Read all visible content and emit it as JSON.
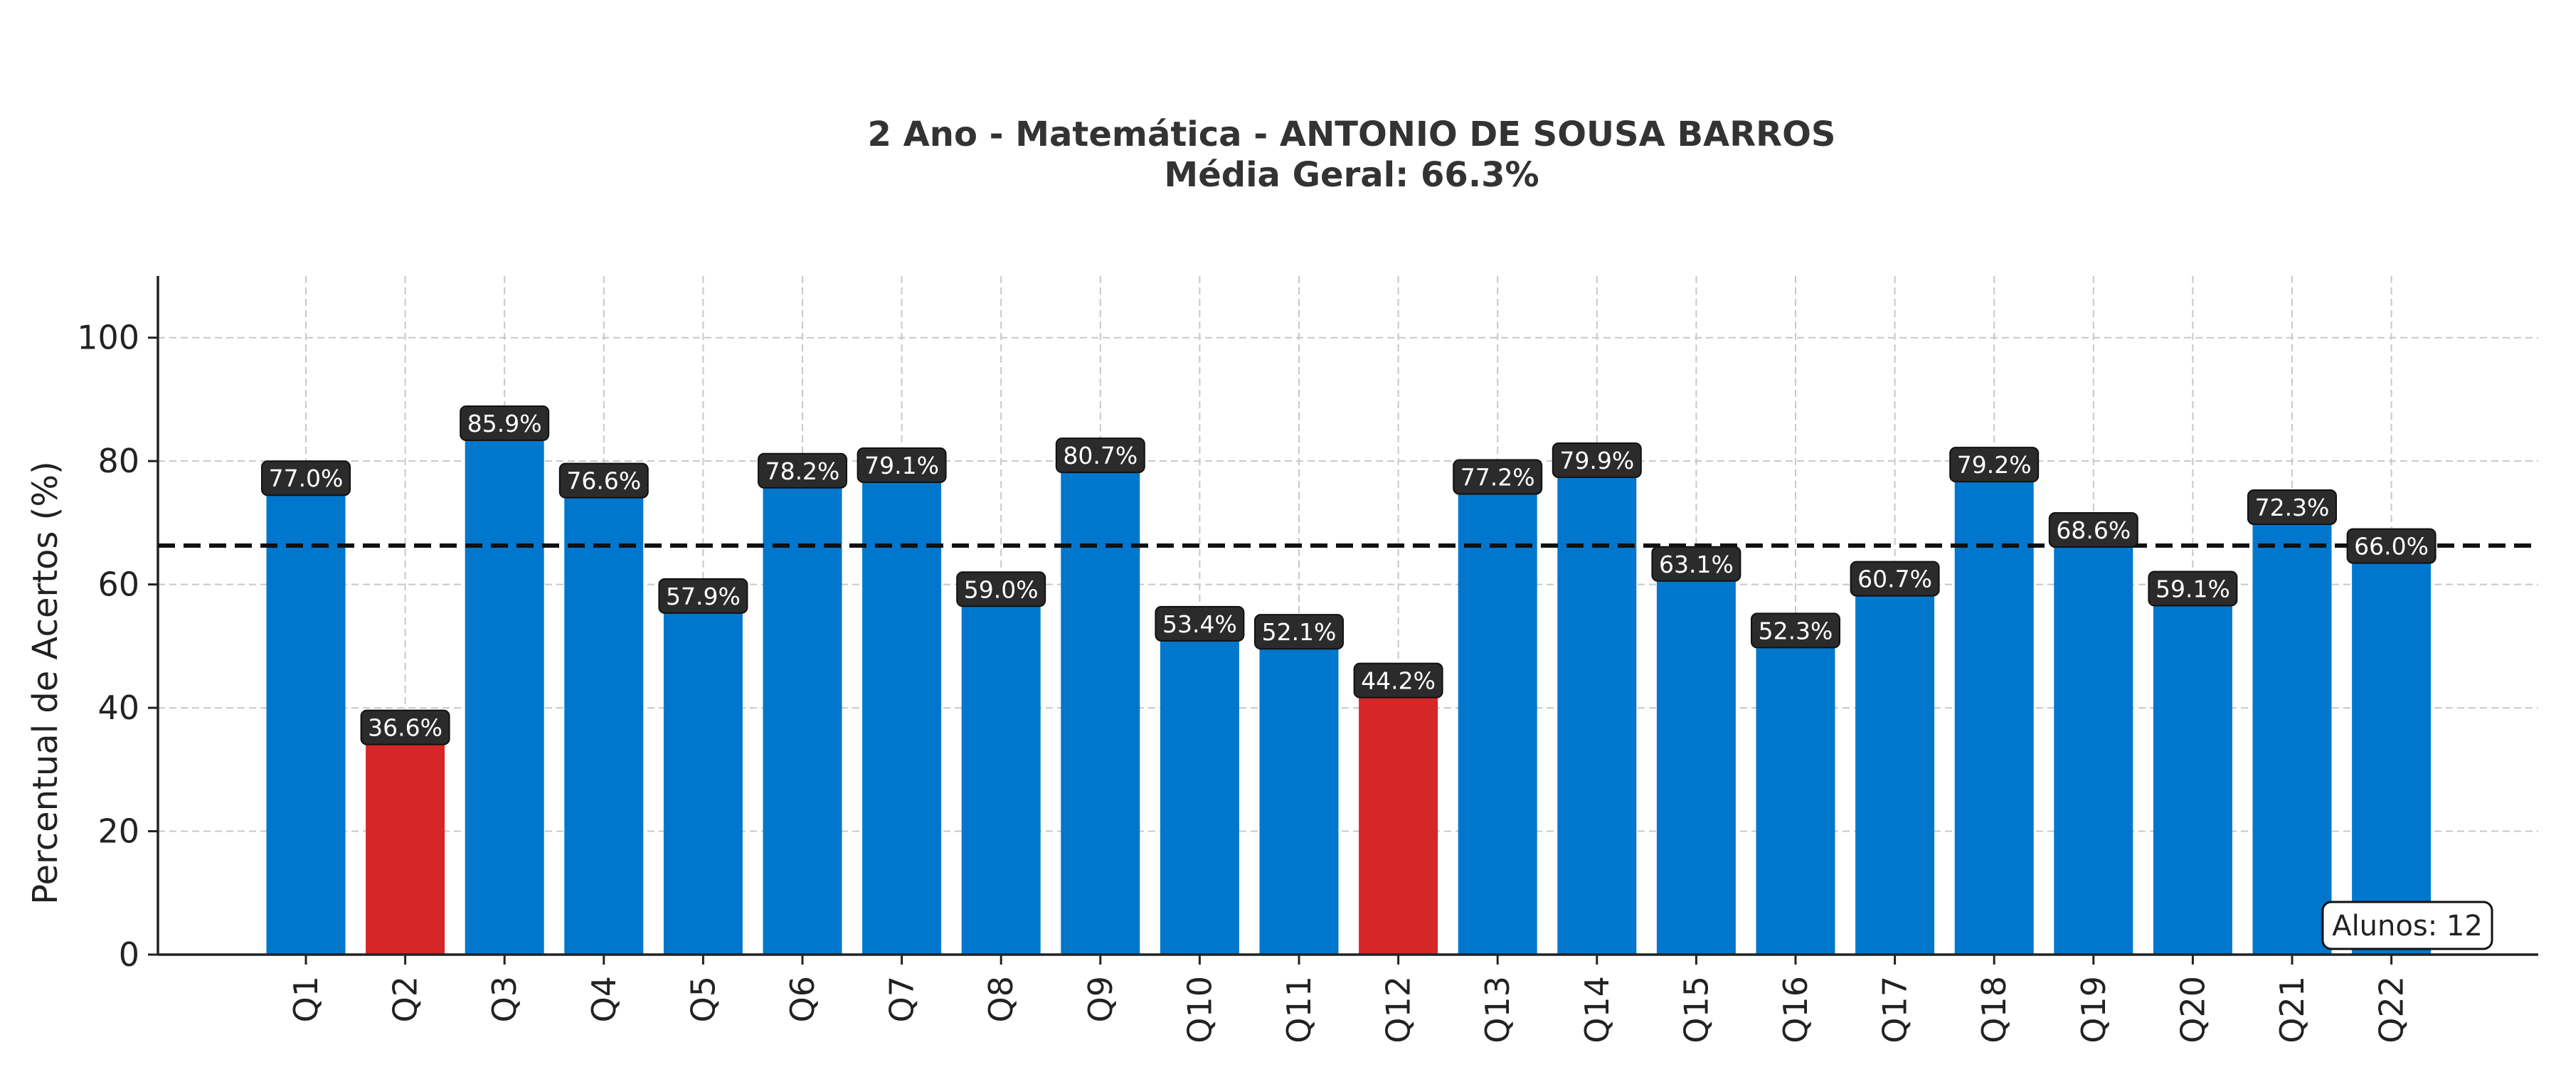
{
  "chart_data": {
    "type": "bar",
    "title": "2 Ano - Matemática - ANTONIO DE SOUSA BARROS",
    "subtitle": "Média Geral: 66.3%",
    "xlabel": "",
    "ylabel": "Percentual de Acertos (%)",
    "ylim": [
      0,
      110
    ],
    "yticks": [
      0,
      20,
      40,
      60,
      80,
      100
    ],
    "grid": true,
    "categories": [
      "Q1",
      "Q2",
      "Q3",
      "Q4",
      "Q5",
      "Q6",
      "Q7",
      "Q8",
      "Q9",
      "Q10",
      "Q11",
      "Q12",
      "Q13",
      "Q14",
      "Q15",
      "Q16",
      "Q17",
      "Q18",
      "Q19",
      "Q20",
      "Q21",
      "Q22"
    ],
    "values": [
      77.0,
      36.6,
      85.9,
      76.6,
      57.9,
      78.2,
      79.1,
      59.0,
      80.7,
      53.4,
      52.1,
      44.2,
      77.2,
      79.9,
      63.1,
      52.3,
      60.7,
      79.2,
      68.6,
      59.1,
      72.3,
      66.0
    ],
    "value_labels": [
      "77.0%",
      "36.6%",
      "85.9%",
      "76.6%",
      "57.9%",
      "78.2%",
      "79.1%",
      "59.0%",
      "80.7%",
      "53.4%",
      "52.1%",
      "44.2%",
      "77.2%",
      "79.9%",
      "63.1%",
      "52.3%",
      "60.7%",
      "79.2%",
      "68.6%",
      "59.1%",
      "72.3%",
      "66.0%"
    ],
    "mean_line": 66.3,
    "low_threshold": 50,
    "colors": {
      "bar": "#0077cc",
      "bar_low": "#d62728",
      "label_bg": "#2b2b2b",
      "mean_line": "#111111",
      "grid": "#c8c8c8"
    },
    "annotation": "Alunos: 12"
  }
}
